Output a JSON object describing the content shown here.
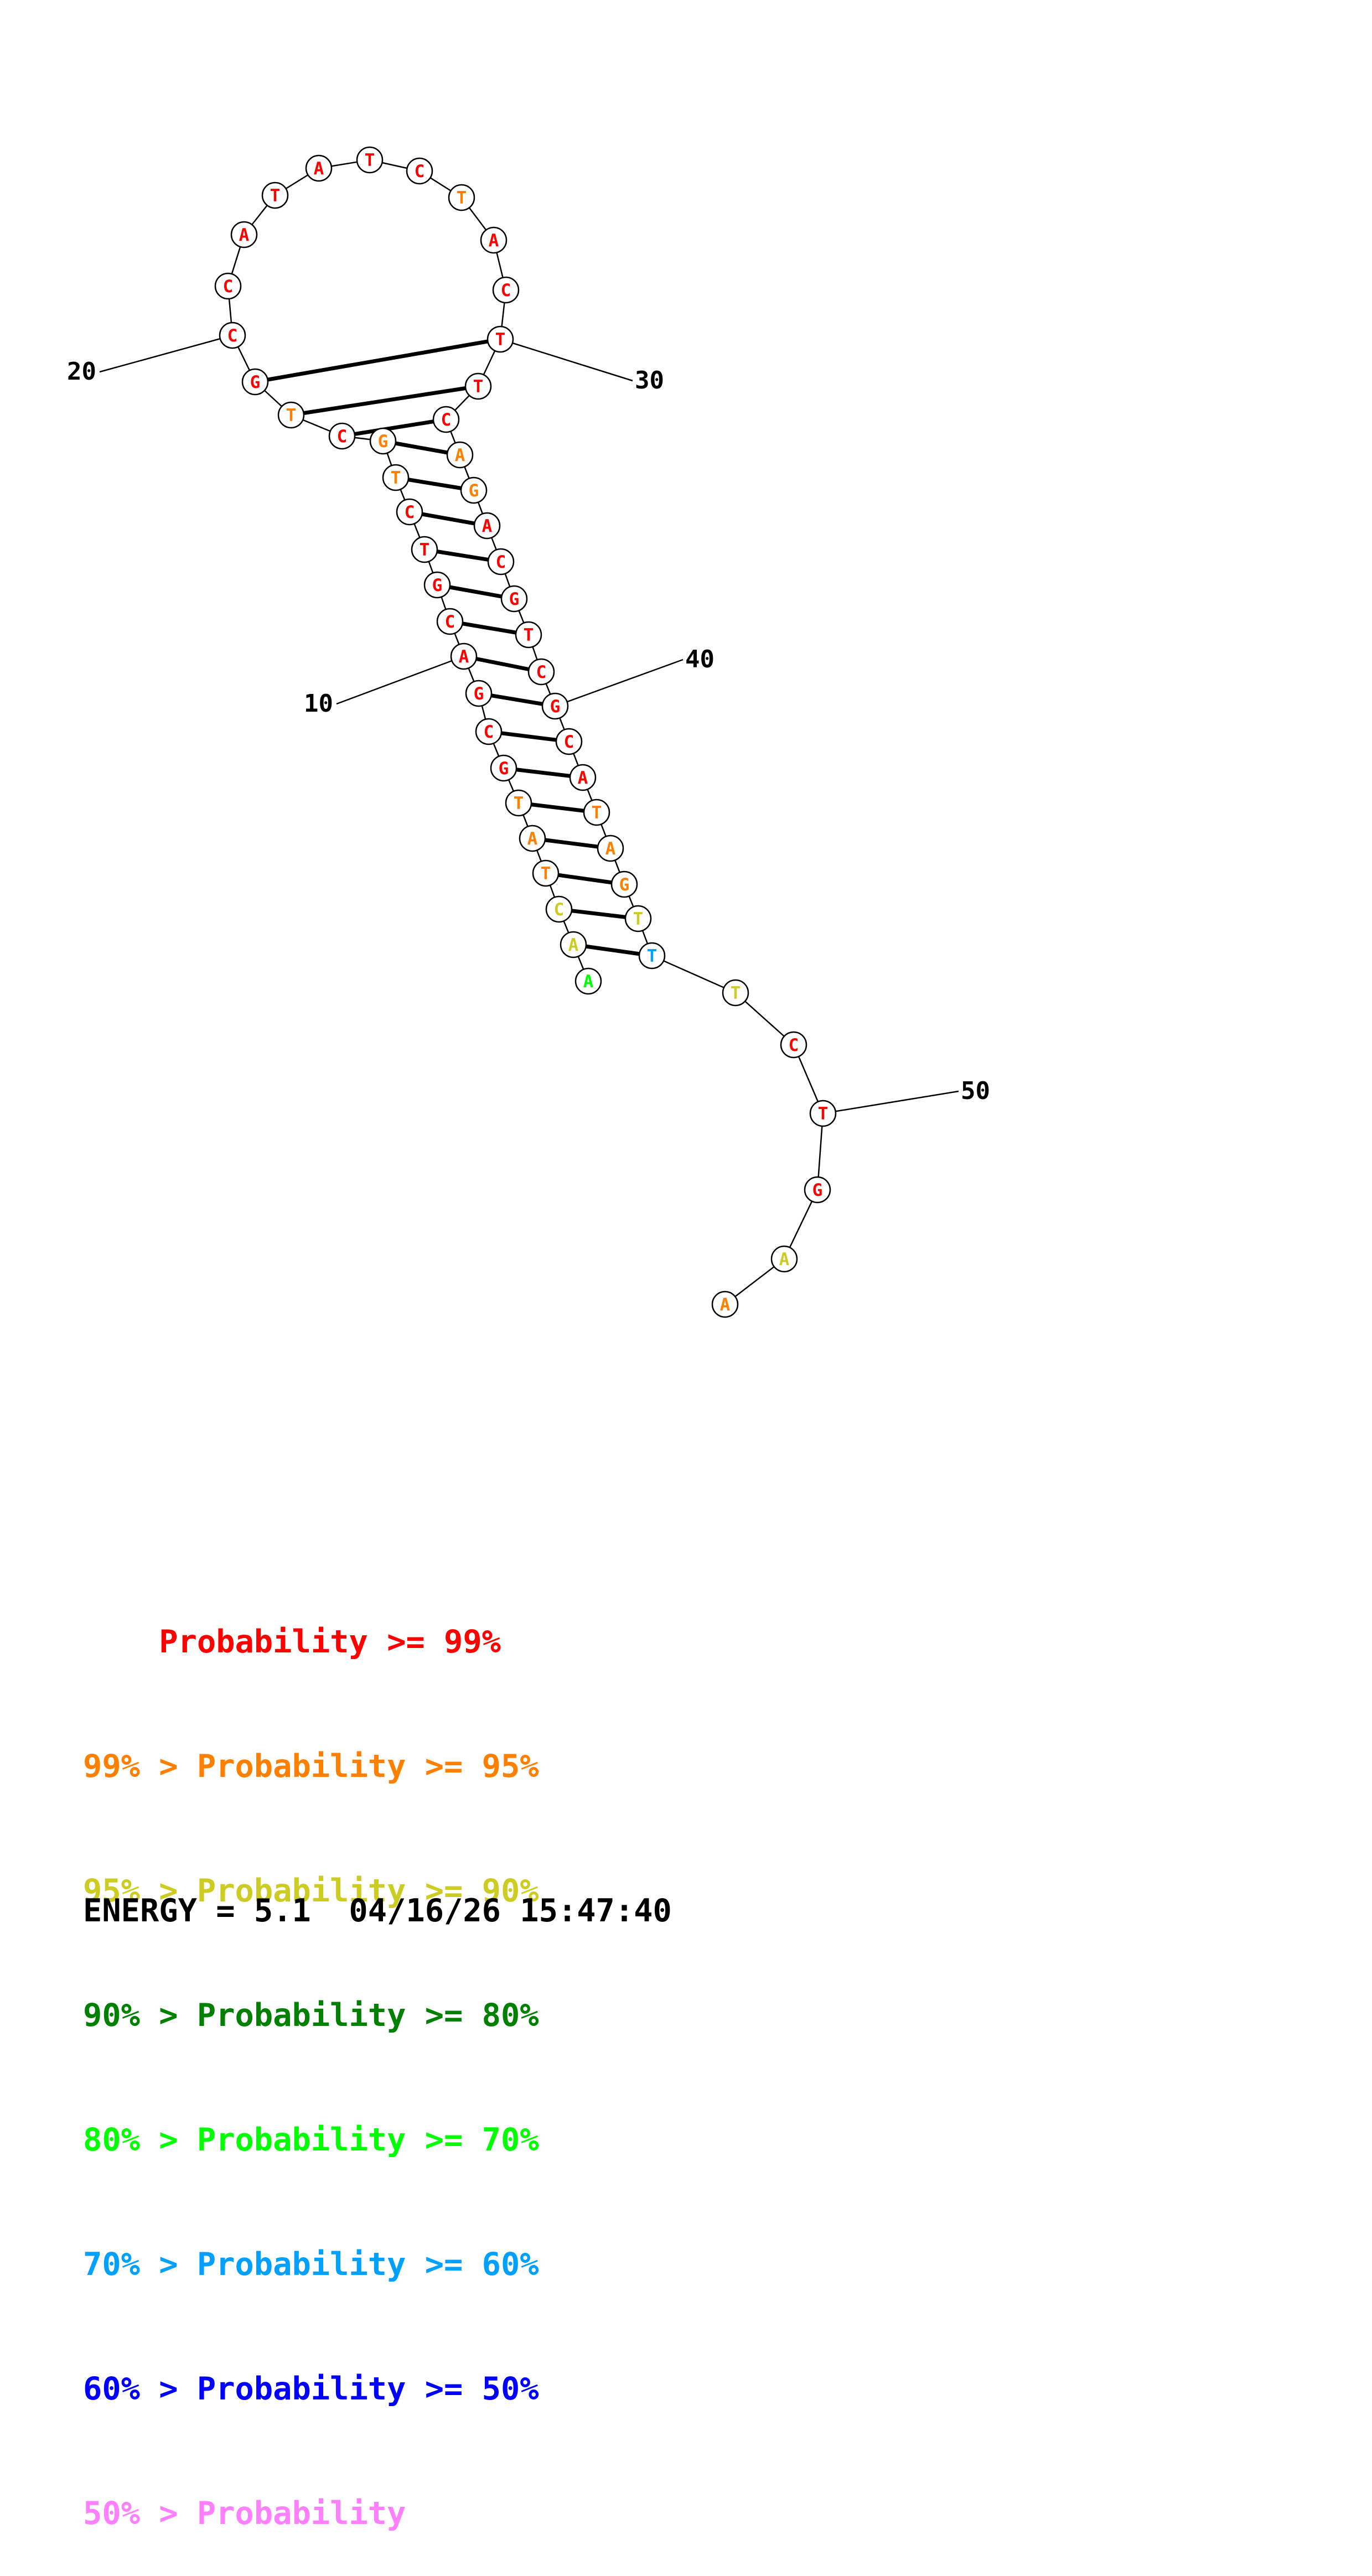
{
  "sequence": [
    "A",
    "A",
    "C",
    "T",
    "A",
    "T",
    "G",
    "C",
    "G",
    "A",
    "C",
    "G",
    "T",
    "C",
    "T",
    "G",
    "C",
    "T",
    "G",
    "C",
    "C",
    "A",
    "T",
    "A",
    "T",
    "C",
    "T",
    "A",
    "C",
    "T",
    "T",
    "C",
    "A",
    "G",
    "A",
    "C",
    "G",
    "T",
    "C",
    "G",
    "C",
    "A",
    "T",
    "A",
    "G",
    "T",
    "T",
    "T",
    "C",
    "T",
    "G",
    "A",
    "A"
  ],
  "probability_level": [
    5,
    3,
    3,
    2,
    2,
    2,
    1,
    1,
    1,
    1,
    1,
    1,
    1,
    1,
    2,
    2,
    1,
    2,
    1,
    1,
    1,
    1,
    1,
    1,
    1,
    1,
    2,
    1,
    1,
    1,
    1,
    1,
    2,
    2,
    1,
    1,
    1,
    1,
    1,
    1,
    1,
    1,
    2,
    2,
    2,
    3,
    6,
    3,
    1,
    1,
    1,
    3,
    2
  ],
  "pairs": [
    [
      2,
      47
    ],
    [
      3,
      46
    ],
    [
      4,
      45
    ],
    [
      5,
      44
    ],
    [
      6,
      43
    ],
    [
      7,
      42
    ],
    [
      8,
      41
    ],
    [
      9,
      40
    ],
    [
      10,
      39
    ],
    [
      11,
      38
    ],
    [
      12,
      37
    ],
    [
      13,
      36
    ],
    [
      14,
      35
    ],
    [
      15,
      34
    ],
    [
      16,
      33
    ],
    [
      17,
      32
    ],
    [
      18,
      31
    ],
    [
      19,
      30
    ]
  ],
  "position_labels": [
    {
      "index": 10,
      "text": "10"
    },
    {
      "index": 20,
      "text": "20"
    },
    {
      "index": 30,
      "text": "30"
    },
    {
      "index": 40,
      "text": "40"
    },
    {
      "index": 50,
      "text": "50"
    }
  ],
  "colors": {
    "1": "#ff0000",
    "2": "#ff8000",
    "3": "#cccc22",
    "4": "#008000",
    "5": "#00ff00",
    "6": "#00a0ff",
    "7": "#0000ff",
    "8": "#ff80ff"
  },
  "legend": [
    {
      "prefix": "    ",
      "text": "Probability >= 99%",
      "color": "#ff0000"
    },
    {
      "prefix": "99% > ",
      "text": "Probability >= 95%",
      "color": "#ff8000"
    },
    {
      "prefix": "95% > ",
      "text": "Probability >= 90%",
      "color": "#cccc22"
    },
    {
      "prefix": "90% > ",
      "text": "Probability >= 80%",
      "color": "#008000"
    },
    {
      "prefix": "80% > ",
      "text": "Probability >= 70%",
      "color": "#00ff00"
    },
    {
      "prefix": "70% > ",
      "text": "Probability >= 60%",
      "color": "#00a0ff"
    },
    {
      "prefix": "60% > ",
      "text": "Probability >= 50%",
      "color": "#0000ff"
    },
    {
      "prefix": "50% > ",
      "text": "Probability",
      "color": "#ff80ff"
    }
  ],
  "footer": {
    "energy_label": "ENERGY = 5.1  04/16/26 15:47:40"
  }
}
